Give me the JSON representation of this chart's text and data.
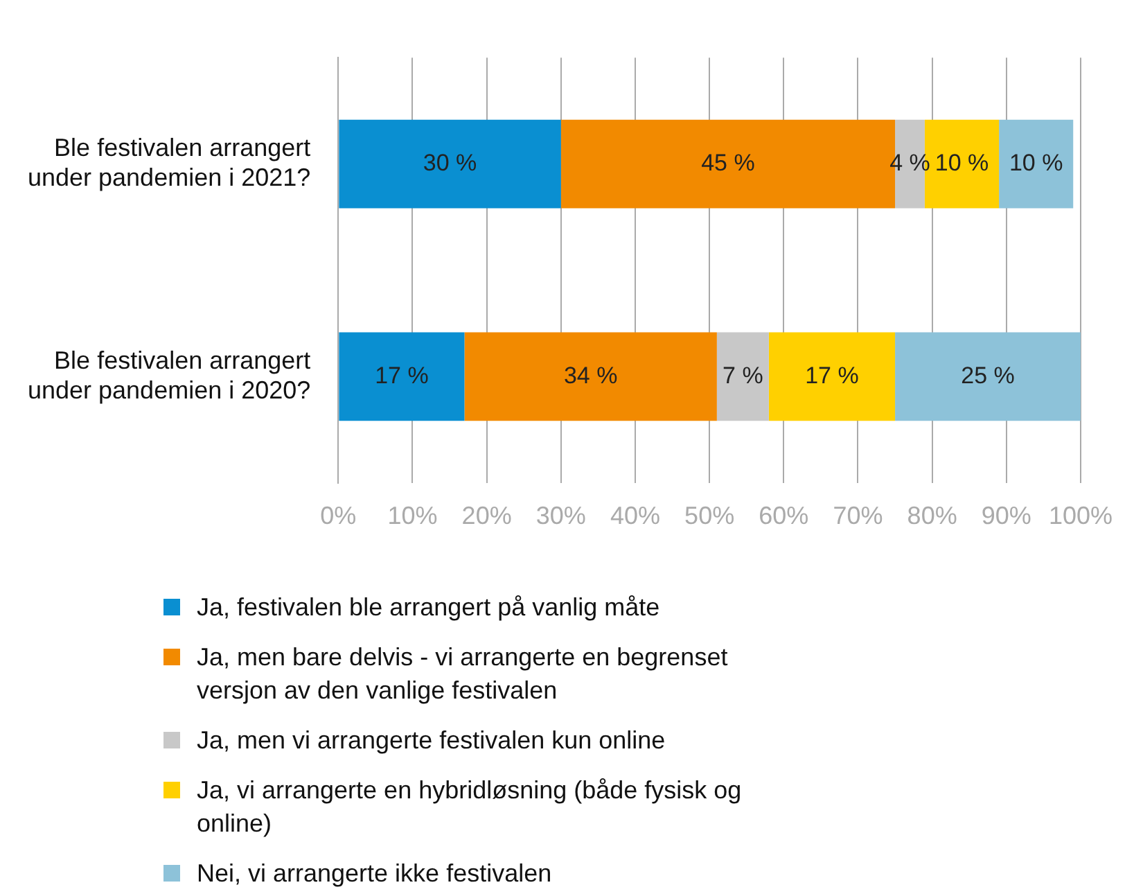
{
  "chart_data": {
    "type": "bar",
    "orientation": "horizontal",
    "stacked": true,
    "categories": [
      "Ble festivalen arrangert under pandemien i 2021?",
      "Ble festivalen arrangert under pandemien i 2020?"
    ],
    "series": [
      {
        "name": "Ja, festivalen ble arrangert på vanlig måte",
        "color": "#0a8fd1",
        "values": [
          30,
          17
        ],
        "value_labels": [
          "30 %",
          "17 %"
        ]
      },
      {
        "name": "Ja, men bare delvis - vi arrangerte en begrenset versjon av den vanlige festivalen",
        "color": "#f28a00",
        "values": [
          45,
          34
        ],
        "value_labels": [
          "45 %",
          "34 %"
        ]
      },
      {
        "name": "Ja, men vi arrangerte festivalen kun online",
        "color": "#c8c8c8",
        "values": [
          4,
          7
        ],
        "value_labels": [
          "4 %",
          "7 %"
        ]
      },
      {
        "name": "Ja, vi arrangerte en hybridløsning (både fysisk og online)",
        "color": "#ffd000",
        "values": [
          10,
          17
        ],
        "value_labels": [
          "10 %",
          "17 %"
        ]
      },
      {
        "name": "Nei, vi arrangerte ikke festivalen",
        "color": "#8dc2d9",
        "values": [
          10,
          25
        ],
        "value_labels": [
          "10 %",
          "25 %"
        ]
      }
    ],
    "xlim": [
      0,
      100
    ],
    "xticks": [
      {
        "value": 0,
        "label": "0%"
      },
      {
        "value": 10,
        "label": "10%"
      },
      {
        "value": 20,
        "label": "20%"
      },
      {
        "value": 30,
        "label": "30%"
      },
      {
        "value": 40,
        "label": "40%"
      },
      {
        "value": 50,
        "label": "50%"
      },
      {
        "value": 60,
        "label": "60%"
      },
      {
        "value": 70,
        "label": "70%"
      },
      {
        "value": 80,
        "label": "80%"
      },
      {
        "value": 90,
        "label": "90%"
      },
      {
        "value": 100,
        "label": "100%"
      }
    ],
    "grid": "x",
    "legend": "bottom"
  }
}
